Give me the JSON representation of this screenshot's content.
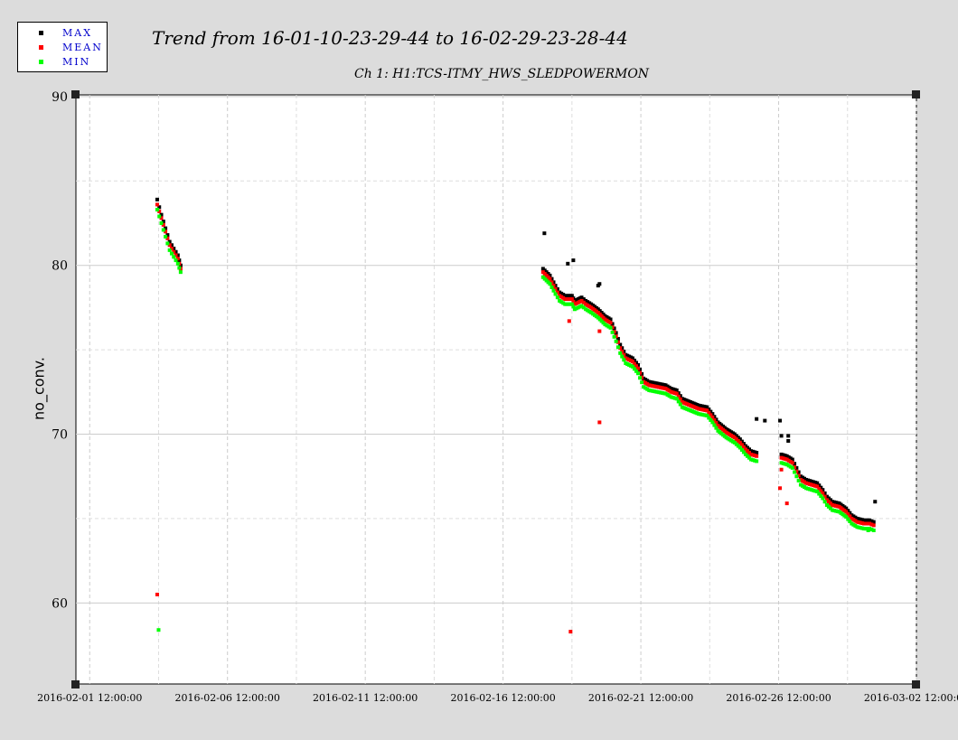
{
  "legend": {
    "items": [
      {
        "label": "MAX",
        "color": "#000000"
      },
      {
        "label": "MEAN",
        "color": "#ff0000"
      },
      {
        "label": "MIN",
        "color": "#00ff00"
      }
    ]
  },
  "title": "Trend from 16-01-10-23-29-44 to 16-02-29-23-28-44",
  "subtitle": "Ch 1: H1:TCS-ITMY_HWS_SLEDPOWERMON",
  "ylabel": "no_conv.",
  "chart_data": {
    "type": "scatter",
    "title": "Trend from 16-01-10-23-29-44 to 16-02-29-23-28-44",
    "subtitle": "Ch 1: H1:TCS-ITMY_HWS_SLEDPOWERMON",
    "xlabel": "",
    "ylabel": "no_conv.",
    "x_unit": "days since 2016-02-01 12:00:00",
    "xlim": [
      -0.5,
      30.0
    ],
    "ylim": [
      55.2,
      90.1
    ],
    "x_ticks": [
      {
        "x": 0,
        "label": "2016-02-01 12:00:00"
      },
      {
        "x": 5,
        "label": "2016-02-06 12:00:00"
      },
      {
        "x": 10,
        "label": "2016-02-11 12:00:00"
      },
      {
        "x": 15,
        "label": "2016-02-16 12:00:00"
      },
      {
        "x": 20,
        "label": "2016-02-21 12:00:00"
      },
      {
        "x": 25,
        "label": "2016-02-26 12:00:00"
      },
      {
        "x": 30,
        "label": "2016-03-02 12:00:00"
      }
    ],
    "y_ticks": [
      {
        "y": 60,
        "label": "60"
      },
      {
        "y": 70,
        "label": "70"
      },
      {
        "y": 80,
        "label": "80"
      },
      {
        "y": 90,
        "label": "90"
      }
    ],
    "y_minor_ticks": [
      65,
      75,
      85
    ],
    "x_minor_ticks": [
      2.5,
      7.5,
      12.5,
      17.5,
      22.5,
      27.5
    ],
    "grid": true,
    "legend_position": "top-left",
    "min_offset": 0.5,
    "series": [
      {
        "name": "MAX",
        "color": "#000000",
        "segments": [
          [
            [
              2.45,
              83.9
            ],
            [
              2.6,
              83.0
            ],
            [
              2.75,
              82.2
            ],
            [
              2.9,
              81.4
            ],
            [
              3.05,
              81.0
            ],
            [
              3.2,
              80.6
            ],
            [
              3.3,
              80.0
            ]
          ],
          [
            [
              16.45,
              79.8
            ],
            [
              16.7,
              79.4
            ],
            [
              16.9,
              78.8
            ],
            [
              17.05,
              78.4
            ],
            [
              17.25,
              78.2
            ],
            [
              17.5,
              78.2
            ],
            [
              17.6,
              77.9
            ],
            [
              17.85,
              78.1
            ],
            [
              18.0,
              77.9
            ],
            [
              18.2,
              77.7
            ],
            [
              18.45,
              77.4
            ],
            [
              18.7,
              77.0
            ],
            [
              18.9,
              76.8
            ],
            [
              19.1,
              76.0
            ],
            [
              19.25,
              75.3
            ],
            [
              19.45,
              74.7
            ],
            [
              19.7,
              74.5
            ],
            [
              19.9,
              74.1
            ],
            [
              20.1,
              73.3
            ],
            [
              20.3,
              73.1
            ],
            [
              20.6,
              73.0
            ],
            [
              20.9,
              72.9
            ],
            [
              21.1,
              72.7
            ],
            [
              21.3,
              72.6
            ],
            [
              21.5,
              72.1
            ],
            [
              21.8,
              71.9
            ],
            [
              22.1,
              71.7
            ],
            [
              22.4,
              71.6
            ],
            [
              22.6,
              71.2
            ],
            [
              22.8,
              70.7
            ],
            [
              23.1,
              70.3
            ],
            [
              23.4,
              70.0
            ],
            [
              23.6,
              69.7
            ],
            [
              23.8,
              69.3
            ],
            [
              24.0,
              69.0
            ],
            [
              24.2,
              68.9
            ]
          ],
          [
            [
              25.1,
              68.8
            ],
            [
              25.3,
              68.7
            ],
            [
              25.5,
              68.5
            ],
            [
              25.65,
              68.0
            ],
            [
              25.8,
              67.5
            ],
            [
              26.0,
              67.3
            ],
            [
              26.2,
              67.2
            ],
            [
              26.4,
              67.1
            ],
            [
              26.6,
              66.7
            ],
            [
              26.75,
              66.3
            ],
            [
              26.95,
              66.0
            ],
            [
              27.2,
              65.9
            ],
            [
              27.45,
              65.6
            ],
            [
              27.65,
              65.2
            ],
            [
              27.85,
              65.0
            ],
            [
              28.1,
              64.9
            ],
            [
              28.3,
              64.9
            ],
            [
              28.45,
              64.8
            ]
          ]
        ],
        "outliers": [
          [
            16.5,
            81.9
          ],
          [
            17.35,
            80.1
          ],
          [
            17.55,
            80.3
          ],
          [
            18.45,
            78.8
          ],
          [
            18.5,
            78.9
          ],
          [
            24.2,
            70.9
          ],
          [
            24.5,
            70.8
          ],
          [
            25.05,
            70.8
          ],
          [
            25.1,
            69.9
          ],
          [
            25.35,
            69.9
          ],
          [
            25.35,
            69.6
          ],
          [
            28.5,
            66.0
          ]
        ]
      },
      {
        "name": "MEAN",
        "color": "#ff0000",
        "segments": [
          [
            [
              2.45,
              83.6
            ],
            [
              2.6,
              82.8
            ],
            [
              2.75,
              82.0
            ],
            [
              2.9,
              81.2
            ],
            [
              3.05,
              80.8
            ],
            [
              3.2,
              80.4
            ],
            [
              3.3,
              79.8
            ]
          ],
          [
            [
              16.45,
              79.6
            ],
            [
              16.7,
              79.2
            ],
            [
              16.9,
              78.6
            ],
            [
              17.05,
              78.2
            ],
            [
              17.25,
              78.0
            ],
            [
              17.5,
              78.0
            ],
            [
              17.6,
              77.7
            ],
            [
              17.85,
              77.9
            ],
            [
              18.0,
              77.7
            ],
            [
              18.2,
              77.5
            ],
            [
              18.45,
              77.2
            ],
            [
              18.7,
              76.8
            ],
            [
              18.9,
              76.6
            ],
            [
              19.1,
              75.8
            ],
            [
              19.25,
              75.1
            ],
            [
              19.45,
              74.5
            ],
            [
              19.7,
              74.3
            ],
            [
              19.9,
              73.9
            ],
            [
              20.1,
              73.1
            ],
            [
              20.3,
              72.9
            ],
            [
              20.6,
              72.8
            ],
            [
              20.9,
              72.7
            ],
            [
              21.1,
              72.5
            ],
            [
              21.3,
              72.4
            ],
            [
              21.5,
              71.9
            ],
            [
              21.8,
              71.7
            ],
            [
              22.1,
              71.5
            ],
            [
              22.4,
              71.4
            ],
            [
              22.6,
              71.0
            ],
            [
              22.8,
              70.5
            ],
            [
              23.1,
              70.1
            ],
            [
              23.4,
              69.8
            ],
            [
              23.6,
              69.5
            ],
            [
              23.8,
              69.1
            ],
            [
              24.0,
              68.8
            ],
            [
              24.2,
              68.7
            ]
          ],
          [
            [
              25.1,
              68.6
            ],
            [
              25.3,
              68.5
            ],
            [
              25.5,
              68.3
            ],
            [
              25.65,
              67.8
            ],
            [
              25.8,
              67.3
            ],
            [
              26.0,
              67.1
            ],
            [
              26.2,
              67.0
            ],
            [
              26.4,
              66.9
            ],
            [
              26.6,
              66.5
            ],
            [
              26.75,
              66.1
            ],
            [
              26.95,
              65.8
            ],
            [
              27.2,
              65.7
            ],
            [
              27.45,
              65.4
            ],
            [
              27.65,
              65.0
            ],
            [
              27.85,
              64.8
            ],
            [
              28.1,
              64.7
            ],
            [
              28.3,
              64.7
            ],
            [
              28.45,
              64.6
            ]
          ]
        ],
        "outliers": [
          [
            2.45,
            60.5
          ],
          [
            17.4,
            76.7
          ],
          [
            17.45,
            58.3
          ],
          [
            18.5,
            76.1
          ],
          [
            18.5,
            70.7
          ],
          [
            25.1,
            67.9
          ],
          [
            25.05,
            66.8
          ],
          [
            25.3,
            65.9
          ]
        ]
      },
      {
        "name": "MIN",
        "color": "#00ff00",
        "segments": [
          [
            [
              2.45,
              83.3
            ],
            [
              2.6,
              82.5
            ],
            [
              2.75,
              81.7
            ],
            [
              2.9,
              80.9
            ],
            [
              3.05,
              80.5
            ],
            [
              3.2,
              80.1
            ],
            [
              3.3,
              79.6
            ]
          ],
          [
            [
              16.45,
              79.3
            ],
            [
              16.7,
              78.9
            ],
            [
              16.9,
              78.3
            ],
            [
              17.05,
              77.9
            ],
            [
              17.25,
              77.7
            ],
            [
              17.5,
              77.7
            ],
            [
              17.6,
              77.4
            ],
            [
              17.85,
              77.6
            ],
            [
              18.0,
              77.4
            ],
            [
              18.2,
              77.2
            ],
            [
              18.45,
              76.9
            ],
            [
              18.7,
              76.5
            ],
            [
              18.9,
              76.3
            ],
            [
              19.1,
              75.5
            ],
            [
              19.25,
              74.8
            ],
            [
              19.45,
              74.2
            ],
            [
              19.7,
              74.0
            ],
            [
              19.9,
              73.6
            ],
            [
              20.1,
              72.8
            ],
            [
              20.3,
              72.6
            ],
            [
              20.6,
              72.5
            ],
            [
              20.9,
              72.4
            ],
            [
              21.1,
              72.2
            ],
            [
              21.3,
              72.1
            ],
            [
              21.5,
              71.6
            ],
            [
              21.8,
              71.4
            ],
            [
              22.1,
              71.2
            ],
            [
              22.4,
              71.1
            ],
            [
              22.6,
              70.7
            ],
            [
              22.8,
              70.2
            ],
            [
              23.1,
              69.8
            ],
            [
              23.4,
              69.5
            ],
            [
              23.6,
              69.2
            ],
            [
              23.8,
              68.8
            ],
            [
              24.0,
              68.5
            ],
            [
              24.2,
              68.4
            ]
          ],
          [
            [
              25.1,
              68.3
            ],
            [
              25.3,
              68.2
            ],
            [
              25.5,
              68.0
            ],
            [
              25.65,
              67.5
            ],
            [
              25.8,
              67.0
            ],
            [
              26.0,
              66.8
            ],
            [
              26.2,
              66.7
            ],
            [
              26.4,
              66.6
            ],
            [
              26.6,
              66.2
            ],
            [
              26.75,
              65.8
            ],
            [
              26.95,
              65.5
            ],
            [
              27.2,
              65.4
            ],
            [
              27.45,
              65.1
            ],
            [
              27.65,
              64.7
            ],
            [
              27.85,
              64.5
            ],
            [
              28.1,
              64.4
            ],
            [
              28.3,
              64.4
            ],
            [
              28.45,
              64.3
            ]
          ]
        ],
        "outliers": [
          [
            2.5,
            58.4
          ],
          [
            28.25,
            64.3
          ]
        ]
      }
    ]
  }
}
